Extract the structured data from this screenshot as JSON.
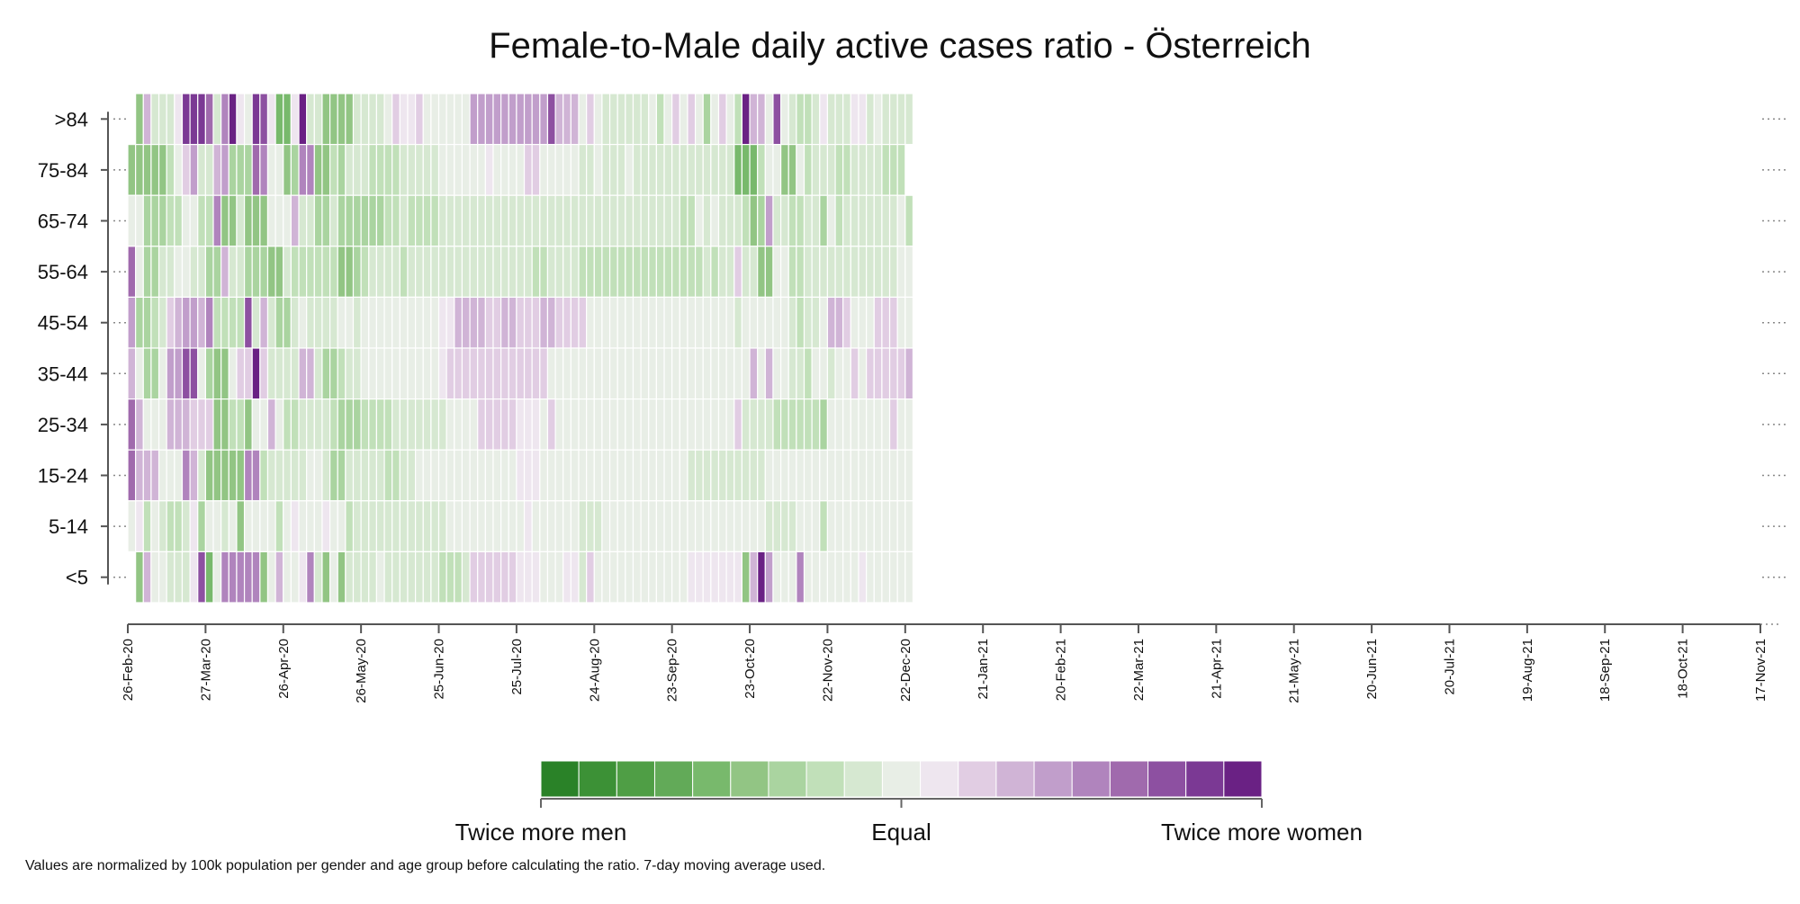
{
  "chart_data": {
    "type": "heatmap",
    "title": "Female-to-Male daily active cases ratio - Österreich",
    "y_categories": [
      ">84",
      "75-84",
      "65-74",
      "55-64",
      "45-54",
      "35-44",
      "25-34",
      "15-24",
      "5-14",
      "<5"
    ],
    "x_tick_labels": [
      "26-Feb-20",
      "27-Mar-20",
      "26-Apr-20",
      "26-May-20",
      "25-Jun-20",
      "25-Jul-20",
      "24-Aug-20",
      "23-Sep-20",
      "23-Oct-20",
      "22-Nov-20",
      "22-Dec-20",
      "21-Jan-21",
      "20-Feb-21",
      "22-Mar-21",
      "21-Apr-21",
      "21-May-21",
      "20-Jun-21",
      "20-Jul-21",
      "19-Aug-21",
      "18-Sep-21",
      "18-Oct-21",
      "17-Nov-21"
    ],
    "x_start": "26-Feb-20",
    "x_end": "17-Nov-21",
    "column_days": 3,
    "value_scale": "log2(female/male)",
    "value_range": [
      -1,
      1
    ],
    "rows": [
      [
        null,
        -0.45,
        0.3,
        -0.1,
        -0.1,
        -0.1,
        0.1,
        0.9,
        0.9,
        0.9,
        0.7,
        -0.1,
        0.6,
        0.95,
        0.1,
        0,
        0.9,
        0.8,
        0.1,
        -0.55,
        -0.55,
        0.1,
        0.95,
        -0.1,
        -0.15,
        -0.4,
        -0.4,
        -0.4,
        -0.5,
        -0.1,
        -0.1,
        -0.1,
        -0.1,
        0.05,
        0.2,
        0.1,
        0.15,
        0.2,
        0.05,
        0.05,
        0.05,
        0.05,
        0.05,
        0.05,
        0.4,
        0.4,
        0.4,
        0.4,
        0.4,
        0.45,
        0.45,
        0.4,
        0.4,
        0.45,
        0.75,
        0.35,
        0.3,
        0.3,
        0.05,
        0.25,
        0.05,
        -0.1,
        -0.1,
        -0.15,
        -0.1,
        -0.1,
        -0.15,
        -0.05,
        -0.25,
        0.05,
        0.25,
        0.05,
        0.25,
        0.05,
        -0.3,
        0.05,
        0.25,
        -0.05,
        -0.2,
        0.95,
        0.35,
        0.3,
        0.05,
        0.75,
        0.05,
        -0.1,
        -0.2,
        -0.2,
        -0.15,
        0.15,
        -0.1,
        -0.1,
        -0.15,
        0.1,
        0.1,
        -0.1,
        0.05,
        -0.15,
        -0.15,
        -0.15,
        -0.15
      ],
      [
        -0.45,
        -0.45,
        -0.45,
        -0.45,
        -0.4,
        -0.2,
        -0.05,
        0.2,
        0.45,
        -0.1,
        -0.1,
        0.3,
        0.4,
        -0.3,
        -0.3,
        -0.3,
        0.7,
        0.55,
        -0.05,
        0.05,
        -0.5,
        -0.35,
        0.55,
        0.55,
        -0.5,
        -0.5,
        -0.25,
        -0.35,
        -0.1,
        -0.15,
        -0.1,
        -0.2,
        -0.2,
        -0.2,
        -0.25,
        -0.1,
        -0.1,
        -0.1,
        -0.1,
        -0.1,
        -0.05,
        -0.05,
        0.05,
        0.05,
        0.05,
        0.05,
        0.15,
        0.05,
        -0.05,
        0.05,
        0.05,
        0.2,
        0.2,
        0.05,
        0.05,
        0.05,
        -0.05,
        -0.05,
        -0.1,
        -0.1,
        -0.05,
        -0.15,
        -0.15,
        -0.1,
        -0.05,
        -0.1,
        -0.15,
        -0.1,
        -0.1,
        -0.15,
        -0.1,
        -0.1,
        -0.15,
        -0.15,
        -0.15,
        -0.15,
        -0.15,
        -0.15,
        -0.55,
        -0.55,
        -0.55,
        -0.2,
        0.05,
        0.05,
        -0.45,
        -0.45,
        -0.05,
        -0.25,
        -0.15,
        -0.15,
        -0.15,
        -0.25,
        -0.2,
        -0.1,
        -0.1,
        -0.15,
        -0.15,
        -0.25,
        -0.2,
        -0.25
      ],
      [
        0.05,
        0.05,
        -0.3,
        -0.3,
        -0.3,
        -0.2,
        -0.2,
        -0.05,
        0.05,
        -0.25,
        -0.25,
        0.55,
        -0.5,
        -0.5,
        -0.1,
        -0.5,
        -0.5,
        -0.5,
        -0.05,
        -0.05,
        -0.05,
        0.3,
        -0.1,
        -0.1,
        -0.35,
        -0.35,
        -0.1,
        -0.35,
        -0.35,
        -0.35,
        -0.3,
        -0.3,
        -0.3,
        -0.25,
        -0.25,
        -0.1,
        -0.2,
        -0.2,
        -0.2,
        -0.2,
        -0.15,
        -0.1,
        -0.1,
        -0.1,
        -0.1,
        -0.1,
        -0.1,
        -0.1,
        -0.1,
        -0.1,
        -0.1,
        -0.1,
        -0.1,
        -0.1,
        -0.1,
        -0.1,
        -0.15,
        -0.1,
        -0.15,
        -0.15,
        -0.1,
        -0.1,
        -0.1,
        -0.1,
        -0.1,
        -0.1,
        -0.1,
        -0.15,
        -0.1,
        -0.1,
        -0.15,
        -0.25,
        -0.25,
        -0.05,
        -0.15,
        -0.05,
        -0.1,
        -0.15,
        -0.1,
        -0.2,
        -0.5,
        -0.35,
        0.45,
        -0.1,
        -0.1,
        -0.25,
        -0.25,
        -0.1,
        -0.15,
        -0.35,
        -0.05,
        -0.2,
        -0.15,
        -0.15,
        -0.15,
        -0.1,
        -0.1,
        -0.15,
        -0.15,
        -0.05,
        -0.2
      ],
      [
        0.7,
        0.05,
        -0.35,
        -0.35,
        -0.1,
        -0.1,
        -0.05,
        0.05,
        -0.1,
        -0.1,
        -0.3,
        -0.3,
        0.3,
        -0.1,
        -0.1,
        -0.3,
        -0.3,
        -0.3,
        -0.4,
        -0.4,
        -0.15,
        -0.2,
        -0.2,
        -0.2,
        -0.2,
        -0.2,
        -0.25,
        -0.5,
        -0.4,
        -0.3,
        -0.25,
        -0.15,
        -0.15,
        -0.15,
        -0.15,
        -0.2,
        -0.1,
        -0.1,
        -0.1,
        -0.1,
        -0.1,
        -0.1,
        -0.1,
        -0.1,
        -0.1,
        -0.1,
        -0.1,
        -0.1,
        -0.1,
        -0.1,
        -0.1,
        -0.1,
        -0.2,
        -0.2,
        -0.15,
        -0.15,
        -0.15,
        -0.15,
        -0.2,
        -0.2,
        -0.2,
        -0.2,
        -0.2,
        -0.2,
        -0.2,
        -0.2,
        -0.2,
        -0.2,
        -0.2,
        -0.2,
        -0.25,
        -0.2,
        -0.2,
        -0.2,
        -0.1,
        -0.2,
        -0.15,
        -0.1,
        0.25,
        -0.1,
        -0.1,
        -0.45,
        -0.45,
        0.05,
        0.05,
        -0.25,
        -0.25,
        -0.15,
        -0.1,
        -0.1,
        -0.1,
        -0.15,
        -0.15,
        -0.1,
        -0.15,
        -0.15,
        -0.15,
        -0.15,
        -0.15,
        -0.05,
        -0.05
      ],
      [
        0.45,
        -0.35,
        -0.35,
        -0.25,
        -0.1,
        0.2,
        0.3,
        0.45,
        0.45,
        0.35,
        0.55,
        -0.25,
        -0.25,
        -0.25,
        -0.25,
        0.8,
        -0.1,
        0.35,
        -0.1,
        -0.35,
        -0.35,
        -0.15,
        0.05,
        -0.15,
        -0.15,
        -0.15,
        -0.1,
        -0.05,
        -0.05,
        -0.1,
        0.05,
        0.05,
        0.05,
        0.05,
        0.05,
        0.05,
        0.05,
        0.05,
        0.05,
        0.05,
        0.1,
        0.15,
        0.3,
        0.3,
        0.3,
        0.3,
        0.2,
        0.25,
        0.3,
        0.3,
        0.25,
        0.2,
        0.2,
        0.3,
        0.35,
        0.25,
        0.2,
        0.2,
        0.2,
        -0.05,
        -0.05,
        -0.05,
        -0.05,
        -0.05,
        -0.05,
        -0.05,
        -0.05,
        -0.05,
        -0.05,
        -0.05,
        -0.05,
        -0.05,
        -0.05,
        -0.05,
        -0.05,
        -0.05,
        -0.05,
        -0.05,
        -0.1,
        -0.05,
        -0.05,
        -0.05,
        -0.05,
        -0.05,
        0.05,
        -0.1,
        -0.25,
        -0.15,
        -0.15,
        -0.05,
        0.3,
        0.3,
        0.25,
        -0.05,
        -0.05,
        -0.05,
        0.25,
        0.25,
        0.25,
        0.05,
        -0.05
      ],
      [
        0.35,
        -0.05,
        -0.35,
        -0.35,
        0.05,
        0.45,
        0.45,
        0.8,
        0.8,
        -0.05,
        -0.3,
        -0.5,
        -0.5,
        -0.05,
        0.25,
        0.25,
        0.95,
        0.25,
        -0.1,
        -0.15,
        -0.15,
        -0.15,
        0.3,
        0.35,
        -0.15,
        -0.3,
        -0.3,
        -0.25,
        -0.1,
        -0.1,
        -0.05,
        -0.05,
        0.05,
        0.05,
        0.05,
        0.05,
        0.05,
        0.05,
        0.05,
        0.05,
        0.1,
        0.25,
        0.25,
        0.25,
        0.25,
        0.25,
        0.25,
        0.25,
        0.25,
        0.25,
        0.25,
        0.25,
        0.2,
        0.2,
        0.05,
        0.05,
        0.05,
        0.05,
        0.05,
        0.05,
        0.05,
        0.05,
        0.05,
        0.05,
        0.05,
        0.05,
        0.05,
        0.05,
        0.05,
        0.05,
        0.05,
        0.05,
        0.05,
        0.05,
        0.05,
        0.05,
        0.05,
        0.05,
        0.05,
        0.05,
        0.3,
        -0.05,
        0.3,
        -0.05,
        0.05,
        -0.15,
        -0.15,
        -0.2,
        -0.05,
        -0.05,
        -0.15,
        -0.05,
        -0.05,
        0.2,
        -0.05,
        0.2,
        0.2,
        0.2,
        0.2,
        0.2,
        0.3,
        0.2
      ],
      [
        0.7,
        0.3,
        -0.05,
        -0.05,
        0.05,
        0.35,
        0.35,
        0.35,
        0.25,
        0.25,
        0.25,
        -0.45,
        -0.45,
        -0.2,
        -0.2,
        -0.45,
        -0.05,
        -0.05,
        0.35,
        -0.05,
        -0.2,
        -0.2,
        -0.15,
        -0.15,
        -0.15,
        -0.15,
        -0.2,
        -0.35,
        -0.35,
        -0.35,
        -0.25,
        -0.2,
        -0.2,
        -0.2,
        -0.15,
        -0.15,
        -0.15,
        -0.15,
        -0.1,
        -0.1,
        -0.1,
        0.05,
        0.05,
        0.05,
        0.05,
        0.2,
        0.2,
        0.2,
        0.2,
        0.2,
        0.15,
        0.15,
        0.15,
        0.05,
        0.2,
        0.05,
        0.05,
        0.05,
        0.05,
        0.05,
        0.05,
        0.05,
        0.05,
        0.05,
        0.05,
        0.05,
        0.05,
        0.05,
        0.05,
        0.05,
        0.05,
        0.05,
        0.05,
        0.05,
        0.05,
        0.05,
        0.05,
        0.05,
        0.2,
        -0.1,
        -0.1,
        -0.15,
        -0.15,
        -0.25,
        -0.2,
        -0.2,
        -0.2,
        -0.2,
        -0.2,
        -0.3,
        -0.05,
        -0.05,
        -0.05,
        -0.05,
        -0.05,
        -0.05,
        -0.05,
        -0.05,
        0.2,
        0.05,
        -0.05
      ],
      [
        0.7,
        0.35,
        0.35,
        0.35,
        -0.05,
        -0.05,
        -0.05,
        0.6,
        0.35,
        -0.1,
        -0.4,
        -0.4,
        -0.4,
        -0.4,
        -0.4,
        0.55,
        0.55,
        -0.25,
        -0.15,
        -0.15,
        -0.15,
        -0.15,
        -0.15,
        0.05,
        0.05,
        -0.15,
        -0.35,
        -0.35,
        -0.15,
        -0.15,
        -0.15,
        -0.15,
        -0.15,
        -0.25,
        -0.25,
        -0.1,
        -0.1,
        -0.05,
        -0.05,
        -0.05,
        -0.05,
        -0.05,
        -0.05,
        -0.05,
        -0.05,
        -0.05,
        -0.05,
        -0.05,
        -0.05,
        -0.05,
        0.15,
        0.15,
        0.15,
        0.05,
        0.05,
        0.05,
        0.05,
        0.05,
        0.05,
        -0.05,
        -0.05,
        -0.05,
        -0.05,
        -0.05,
        -0.05,
        -0.05,
        -0.05,
        -0.05,
        -0.05,
        -0.05,
        -0.05,
        -0.05,
        -0.1,
        -0.1,
        -0.1,
        -0.1,
        -0.1,
        -0.1,
        -0.1,
        -0.1,
        -0.1,
        -0.1,
        -0.05,
        -0.05,
        -0.05,
        -0.05,
        -0.05,
        -0.05,
        -0.05,
        -0.05,
        -0.05,
        -0.05,
        -0.05,
        -0.05,
        -0.05,
        -0.05,
        -0.05,
        -0.05,
        -0.05,
        -0.05,
        -0.05
      ],
      [
        0.05,
        0.15,
        -0.25,
        0.05,
        -0.15,
        -0.25,
        -0.25,
        -0.15,
        0.15,
        -0.3,
        0.05,
        0.05,
        -0.15,
        0.05,
        -0.45,
        0.05,
        0.05,
        0.05,
        -0.05,
        -0.25,
        0.05,
        0.15,
        0.05,
        0.05,
        -0.05,
        0.15,
        0.05,
        -0.05,
        -0.25,
        -0.1,
        -0.1,
        -0.1,
        -0.1,
        -0.1,
        -0.1,
        -0.1,
        -0.1,
        -0.1,
        -0.1,
        -0.1,
        -0.15,
        -0.05,
        -0.05,
        0.05,
        0.05,
        -0.05,
        -0.05,
        -0.05,
        -0.05,
        0.05,
        0.05,
        0.15,
        0.05,
        0.05,
        0.05,
        -0.05,
        -0.05,
        -0.05,
        -0.1,
        -0.15,
        -0.15,
        -0.05,
        -0.05,
        -0.05,
        -0.05,
        -0.05,
        -0.05,
        -0.05,
        -0.05,
        -0.05,
        -0.05,
        -0.05,
        -0.05,
        -0.05,
        -0.05,
        -0.05,
        -0.05,
        -0.05,
        -0.05,
        -0.05,
        -0.05,
        -0.05,
        -0.15,
        -0.15,
        -0.15,
        -0.15,
        0.05,
        0.05,
        0.05,
        -0.2,
        -0.05,
        -0.05,
        -0.05,
        -0.05,
        -0.05,
        -0.05,
        -0.05,
        -0.05,
        -0.05,
        -0.05,
        -0.05
      ],
      [
        null,
        -0.45,
        0.35,
        -0.05,
        0.05,
        -0.15,
        -0.15,
        -0.15,
        0.15,
        0.8,
        -0.55,
        0.05,
        0.6,
        0.5,
        0.5,
        0.5,
        0.5,
        -0.5,
        0.05,
        0.35,
        0.05,
        0.05,
        0.15,
        0.55,
        -0.1,
        -0.4,
        -0.05,
        -0.4,
        -0.15,
        -0.15,
        -0.15,
        -0.1,
        -0.05,
        -0.15,
        -0.1,
        -0.15,
        -0.15,
        -0.15,
        -0.15,
        -0.15,
        -0.2,
        -0.25,
        -0.25,
        -0.15,
        0.25,
        0.25,
        0.25,
        0.2,
        0.2,
        0.2,
        0.15,
        0.1,
        0.15,
        0.05,
        0.05,
        -0.05,
        0.15,
        0.15,
        -0.1,
        0.25,
        -0.05,
        -0.05,
        -0.05,
        -0.05,
        -0.05,
        -0.05,
        -0.05,
        -0.05,
        -0.05,
        -0.05,
        -0.05,
        -0.05,
        0.15,
        0.15,
        0.15,
        0.15,
        0.15,
        0.15,
        0.15,
        -0.45,
        0.35,
        0.95,
        0.45,
        -0.05,
        -0.05,
        -0.05,
        0.55,
        -0.05,
        -0.05,
        -0.05,
        -0.05,
        -0.05,
        -0.05,
        -0.05,
        0.15,
        -0.05,
        -0.05,
        -0.05,
        -0.05,
        -0.05,
        -0.05
      ]
    ]
  },
  "legend": {
    "low_label": "Twice more men",
    "mid_label": "Equal",
    "high_label": "Twice more women",
    "colors": [
      "#2a8228",
      "#3c9136",
      "#4f9e45",
      "#62aa58",
      "#78b96c",
      "#92c584",
      "#aad4a0",
      "#c1e0b9",
      "#d6e8d1",
      "#e8eee6",
      "#eee6ef",
      "#e1cde3",
      "#d0b4d6",
      "#c19ecb",
      "#b084bd",
      "#a06aad",
      "#8d50a1",
      "#7b3994",
      "#6a2184"
    ]
  },
  "footnote": "Values are normalized by 100k population per gender and age group before calculating the ratio. 7-day moving average used."
}
